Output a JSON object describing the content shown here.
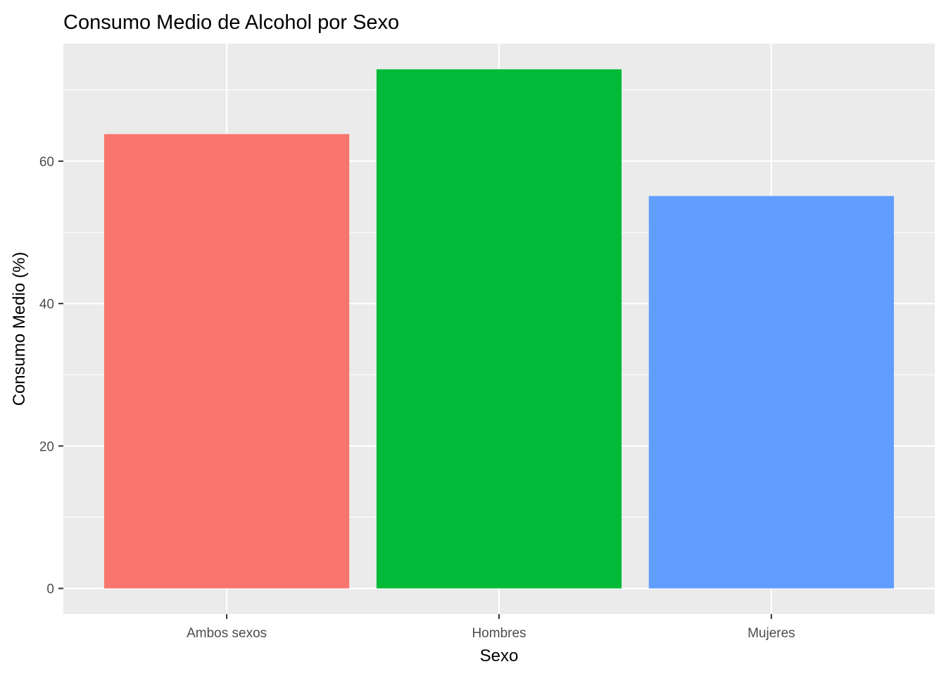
{
  "chart_data": {
    "type": "bar",
    "title": "Consumo Medio de Alcohol por Sexo",
    "xlabel": "Sexo",
    "ylabel": "Consumo Medio (%)",
    "categories": [
      "Ambos sexos",
      "Hombres",
      "Mujeres"
    ],
    "values": [
      63.8,
      72.9,
      55.1
    ],
    "colors": [
      "#F8766D",
      "#00BA38",
      "#619CFF"
    ],
    "ylim": [
      -3.6,
      76.5
    ],
    "yticks": [
      0,
      20,
      40,
      60
    ],
    "yticks_labels": [
      "0",
      "20",
      "40",
      "60"
    ],
    "grid": true,
    "panel_background": "#EBEBEB",
    "grid_color": "#FFFFFF",
    "legend": "none"
  }
}
